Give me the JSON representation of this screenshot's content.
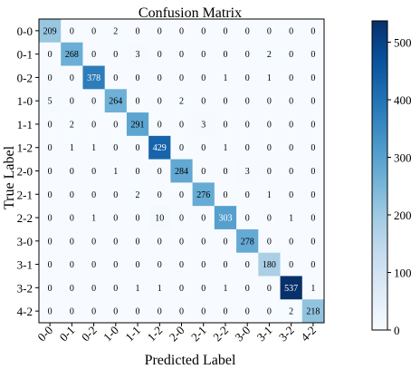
{
  "chart_data": {
    "type": "heatmap",
    "title": "Confusion Matrix",
    "xlabel": "Predicted Label",
    "ylabel": "True Label",
    "x_categories": [
      "0-0",
      "0-1",
      "0-2",
      "1-0",
      "1-1",
      "1-2",
      "2-0",
      "2-1",
      "2-2",
      "3-0",
      "3-1",
      "3-2",
      "4-2"
    ],
    "y_categories": [
      "0-0",
      "0-1",
      "0-2",
      "1-0",
      "1-1",
      "1-2",
      "2-0",
      "2-1",
      "2-2",
      "3-0",
      "3-1",
      "3-2",
      "4-2"
    ],
    "matrix": [
      [
        209,
        0,
        0,
        2,
        0,
        0,
        0,
        0,
        0,
        0,
        0,
        0,
        0
      ],
      [
        0,
        268,
        0,
        0,
        3,
        0,
        0,
        0,
        0,
        0,
        2,
        0,
        0
      ],
      [
        0,
        0,
        378,
        0,
        0,
        0,
        0,
        0,
        1,
        0,
        1,
        0,
        0
      ],
      [
        5,
        0,
        0,
        264,
        0,
        0,
        2,
        0,
        0,
        0,
        0,
        0,
        0
      ],
      [
        0,
        2,
        0,
        0,
        291,
        0,
        0,
        3,
        0,
        0,
        0,
        0,
        0
      ],
      [
        0,
        1,
        1,
        0,
        0,
        429,
        0,
        0,
        1,
        0,
        0,
        0,
        0
      ],
      [
        0,
        0,
        0,
        1,
        0,
        0,
        284,
        0,
        0,
        3,
        0,
        0,
        0
      ],
      [
        0,
        0,
        0,
        0,
        2,
        0,
        0,
        276,
        0,
        0,
        1,
        0,
        0
      ],
      [
        0,
        0,
        1,
        0,
        0,
        10,
        0,
        0,
        303,
        0,
        0,
        1,
        0
      ],
      [
        0,
        0,
        0,
        0,
        0,
        0,
        0,
        0,
        0,
        278,
        0,
        0,
        0
      ],
      [
        0,
        0,
        0,
        0,
        0,
        0,
        0,
        0,
        0,
        0,
        180,
        0,
        0
      ],
      [
        0,
        0,
        0,
        0,
        1,
        1,
        0,
        0,
        1,
        0,
        0,
        537,
        1
      ],
      [
        0,
        0,
        0,
        0,
        0,
        0,
        0,
        0,
        0,
        0,
        0,
        2,
        218
      ]
    ],
    "colormap": [
      "#f7fbff",
      "#deebf7",
      "#c6dbef",
      "#9ecae1",
      "#6baed6",
      "#4292c6",
      "#2171b5",
      "#08519c",
      "#08306b"
    ],
    "colorbar": {
      "range": [
        0,
        537
      ],
      "ticks": [
        0,
        100,
        200,
        300,
        400,
        500
      ]
    }
  }
}
